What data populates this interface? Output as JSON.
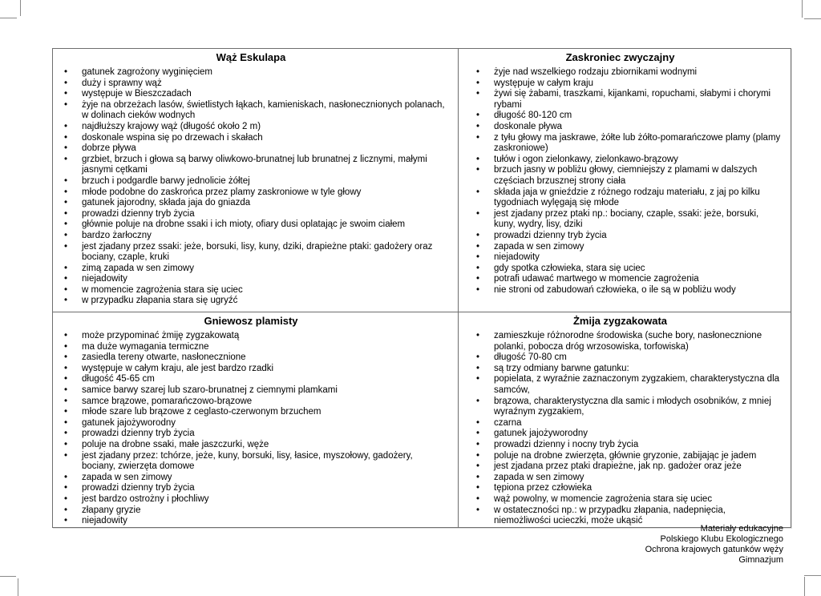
{
  "colors": {
    "background": "#ffffff",
    "table_border": "#6e6e6e",
    "crop_mark": "#8a8a8a",
    "text": "#000000"
  },
  "table": {
    "cells": [
      {
        "title": "Wąż Eskulapa",
        "items": [
          "gatunek zagrożony wyginięciem",
          "duży i sprawny wąż",
          "występuje w Bieszczadach",
          "żyje na obrzeżach lasów, świetlistych łąkach, kamieniskach, nasłonecznionych polanach, w dolinach cieków wodnych",
          "najdłuższy krajowy wąż (długość około 2 m)",
          "doskonale wspina się po drzewach i skałach",
          "dobrze pływa",
          "grzbiet, brzuch i głowa są barwy oliwkowo-brunatnej lub brunatnej z licznymi, małymi jasnymi cętkami",
          "brzuch i podgardle barwy jednolicie żółtej",
          "młode podobne do zaskrońca przez plamy zaskroniowe w tyle głowy",
          "gatunek jajorodny, składa jaja do gniazda",
          "prowadzi dzienny tryb życia",
          "głównie poluje na drobne ssaki i ich mioty, ofiary dusi oplatając je swoim ciałem",
          "bardzo żarłoczny",
          "jest zjadany przez ssaki: jeże, borsuki, lisy, kuny, dziki, drapieżne ptaki: gadożery oraz bociany, czaple, kruki",
          "zimą zapada w sen zimowy",
          "niejadowity",
          "w momencie zagrożenia stara się uciec",
          "w przypadku złapania stara się ugryźć"
        ]
      },
      {
        "title": "Zaskroniec zwyczajny",
        "items": [
          "żyje nad wszelkiego rodzaju zbiornikami wodnymi",
          "występuje w całym kraju",
          "żywi się żabami, traszkami, kijankami, ropuchami, słabymi i chorymi rybami",
          "długość 80-120 cm",
          "doskonale pływa",
          "z tyłu głowy ma jaskrawe, żółte lub żółto-pomarańczowe plamy (plamy zaskroniowe)",
          "tułów i ogon zielonkawy, zielonkawo-brązowy",
          "brzuch jasny w pobliżu głowy, ciemniejszy z plamami w dalszych częściach brzusznej strony ciała",
          "składa jaja w gnieździe z różnego rodzaju materiału, z jaj po kilku tygodniach wylęgają się młode",
          "jest zjadany przez ptaki np.: bociany, czaple, ssaki: jeże, borsuki, kuny, wydry, lisy, dziki",
          "prowadzi dzienny tryb życia",
          "zapada w sen zimowy",
          "niejadowity",
          "gdy spotka człowieka, stara się uciec",
          "potrafi udawać martwego w momencie zagrożenia",
          "nie stroni od zabudowań człowieka, o ile są w pobliżu wody"
        ]
      },
      {
        "title": "Gniewosz plamisty",
        "items": [
          "może przypominać żmiję zygzakowatą",
          "ma duże wymagania termiczne",
          "zasiedla tereny otwarte, nasłonecznione",
          "występuje w całym kraju, ale jest bardzo rzadki",
          "długość 45-65 cm",
          "samice barwy szarej lub szaro-brunatnej z ciemnymi plamkami",
          "samce brązowe, pomarańczowo-brązowe",
          "młode szare lub brązowe z ceglasto-czerwonym brzuchem",
          "gatunek jajożyworodny",
          "prowadzi dzienny tryb życia",
          "poluje na drobne ssaki, małe jaszczurki, węże",
          "jest zjadany przez: tchórze, jeże, kuny, borsuki, lisy, łasice, myszołowy, gadożery, bociany, zwierzęta domowe",
          "zapada w sen zimowy",
          "prowadzi dzienny tryb życia",
          "jest bardzo ostrożny i płochliwy",
          "złapany gryzie",
          "niejadowity"
        ]
      },
      {
        "title": "Żmija zygzakowata",
        "items": [
          "zamieszkuje różnorodne środowiska (suche bory, nasłonecznione polanki, pobocza dróg wrzosowiska, torfowiska)",
          "długość 70-80 cm",
          "są trzy odmiany barwne gatunku:",
          "popielata, z wyraźnie zaznaczonym zygzakiem, charakterystyczna dla samców,",
          "brązowa, charakterystyczna dla samic i młodych osobników, z mniej wyraźnym zygzakiem,",
          "czarna",
          "gatunek jajożyworodny",
          "prowadzi dzienny i nocny tryb życia",
          "poluje na drobne zwierzęta, głównie gryzonie, zabijając je jadem",
          "jest zjadana przez ptaki drapieżne, jak np. gadożer oraz jeże",
          "zapada w sen zimowy",
          "tępiona przez człowieka",
          "wąż powolny, w momencie zagrożenia stara się uciec",
          "w ostateczności np.: w przypadku złapania, nadepnięcia, niemożliwości ucieczki, może ukąsić"
        ]
      }
    ]
  },
  "footer": {
    "lines": [
      "Materiały edukacyjne",
      "Polskiego Klubu Ekologicznego",
      "Ochrona krajowych gatunków węży",
      "Gimnazjum"
    ]
  }
}
